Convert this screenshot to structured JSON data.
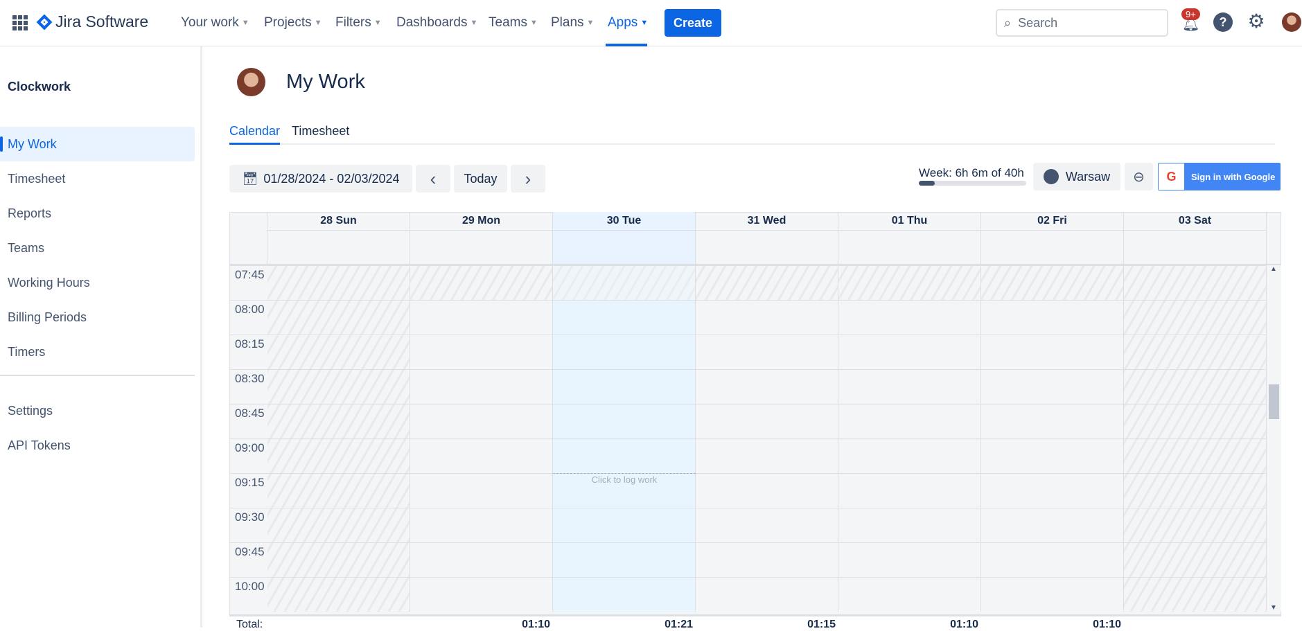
{
  "topbar": {
    "product": "Jira Software",
    "nav": [
      {
        "label": "Your work"
      },
      {
        "label": "Projects"
      },
      {
        "label": "Filters"
      },
      {
        "label": "Dashboards"
      },
      {
        "label": "Teams"
      },
      {
        "label": "Plans"
      },
      {
        "label": "Apps",
        "active": true
      }
    ],
    "create": "Create",
    "search_placeholder": "Search",
    "notifications_badge": "9+",
    "accent": "#0c66e4"
  },
  "sidebar": {
    "title": "Clockwork",
    "items": [
      {
        "label": "My Work",
        "selected": true
      },
      {
        "label": "Timesheet"
      },
      {
        "label": "Reports"
      },
      {
        "label": "Teams"
      },
      {
        "label": "Working Hours"
      },
      {
        "label": "Billing Periods"
      },
      {
        "label": "Timers"
      }
    ],
    "footer_items": [
      {
        "label": "Settings"
      },
      {
        "label": "API Tokens"
      }
    ]
  },
  "main": {
    "title": "My Work",
    "tabs": [
      {
        "label": "Calendar",
        "active": true
      },
      {
        "label": "Timesheet"
      }
    ],
    "toolbar": {
      "date_range": "01/28/2024 - 02/03/2024",
      "today": "Today",
      "week_summary": "Week: 6h 6m of 40h",
      "week_progress_pct": 15,
      "timezone": "Warsaw",
      "google": "Sign in with Google"
    },
    "calendar": {
      "days": [
        "28 Sun",
        "29 Mon",
        "30 Tue",
        "31 Wed",
        "01 Thu",
        "02 Fri",
        "03 Sat"
      ],
      "times": [
        "07:45",
        "08:00",
        "08:15",
        "08:30",
        "08:45",
        "09:00",
        "09:15",
        "09:30",
        "09:45",
        "10:00"
      ],
      "hint": "Click to log work",
      "total_label": "Total:",
      "totals": [
        "",
        "01:10",
        "01:21",
        "01:15",
        "01:10",
        "01:10",
        ""
      ]
    }
  }
}
